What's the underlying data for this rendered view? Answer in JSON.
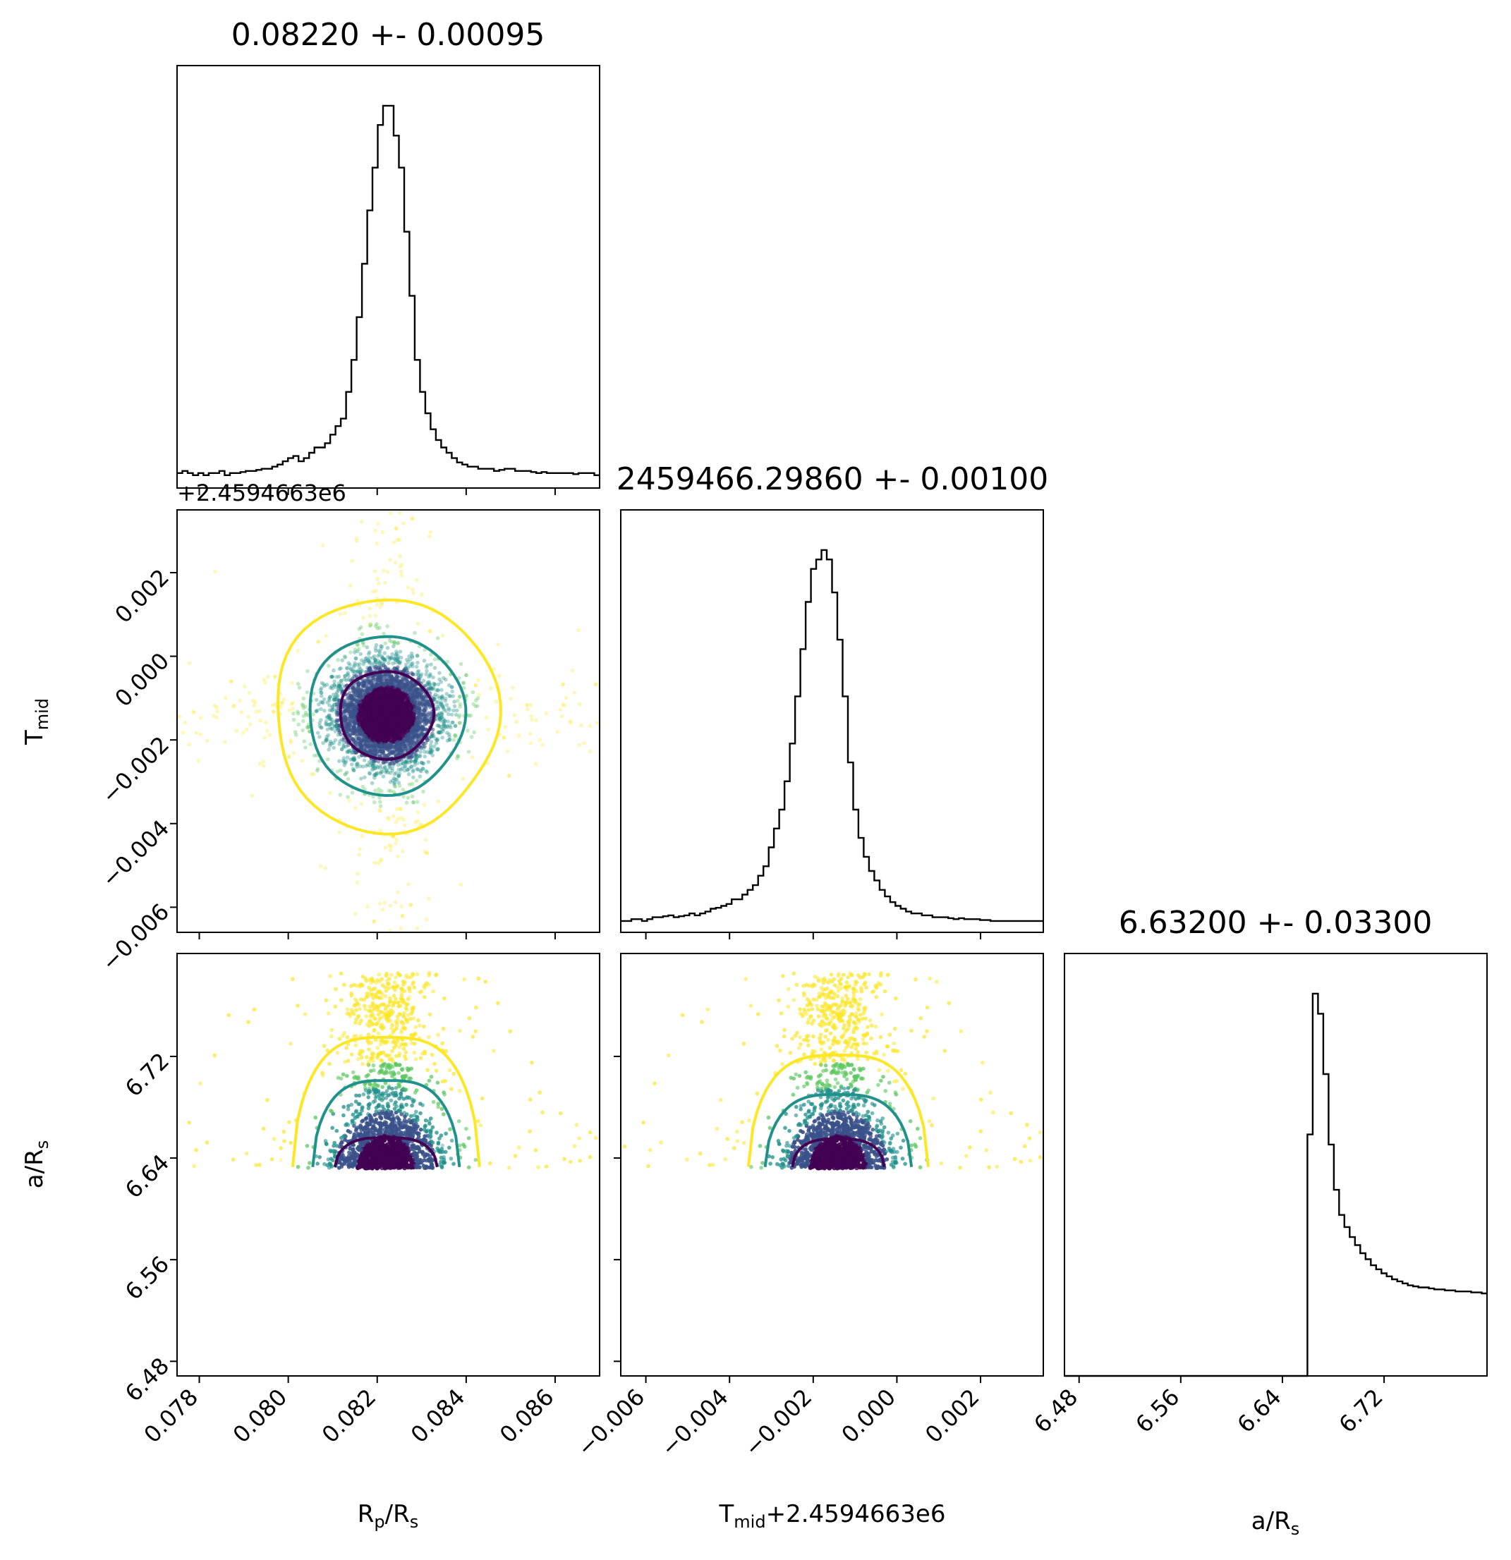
{
  "chart_data": {
    "type": "scatter",
    "panel_titles": {
      "rp": "0.08220 +- 0.00095",
      "tmid": "2459466.29860 +- 0.00100",
      "ars": "6.63200 +- 0.03300"
    },
    "offset_text": {
      "tmid_row": "+2.4594663e6",
      "tmid_xlabel_suffix": "+2.4594663e6"
    },
    "xlabels": {
      "rp": {
        "a": "R",
        "sub_a": "p",
        "b": "/R",
        "sub_b": "s"
      },
      "tmid": {
        "a": "T",
        "sub_a": "mid"
      },
      "ars": {
        "a": "a/R",
        "sub_a": "s"
      }
    },
    "ylabels": {
      "tmid": {
        "a": "T",
        "sub_a": "mid"
      },
      "ars": {
        "a": "a/R",
        "sub_a": "s"
      }
    },
    "axes": {
      "rp": {
        "range": [
          0.0775,
          0.087
        ],
        "ticks": [
          0.078,
          0.08,
          0.082,
          0.084,
          0.086
        ],
        "tick_labels": [
          "0.078",
          "0.080",
          "0.082",
          "0.084",
          "0.086"
        ]
      },
      "tmid": {
        "range": [
          -0.0066,
          0.0035
        ],
        "ticks": [
          -0.006,
          -0.004,
          -0.002,
          0.0,
          0.002
        ],
        "tick_labels": [
          "−0.006",
          "−0.004",
          "−0.002",
          "0.000",
          "0.002"
        ]
      },
      "ars": {
        "range": [
          6.4685,
          6.801
        ],
        "ticks": [
          6.48,
          6.56,
          6.64,
          6.72
        ],
        "tick_labels": [
          "6.48",
          "6.56",
          "6.64",
          "6.72"
        ]
      }
    },
    "posterior": {
      "rp": {
        "median": 0.0822,
        "sigma": 0.00095
      },
      "tmid": {
        "median": -0.0014,
        "sigma": 0.001
      },
      "ars": {
        "lower_bound": 6.632,
        "upper_bound": 6.786,
        "mode": 6.638
      }
    },
    "contour_colors": [
      "#440154",
      "#21918c",
      "#fde725"
    ],
    "point_colormap": [
      "#440154",
      "#3b528b",
      "#21918c",
      "#5ec962",
      "#fde725"
    ],
    "histograms": {
      "rp": {
        "edges": [
          0.0775,
          0.087
        ],
        "counts": [
          14,
          16,
          14,
          12,
          14,
          12,
          14,
          14,
          16,
          12,
          14,
          14,
          15,
          16,
          16,
          17,
          18,
          18,
          20,
          22,
          25,
          28,
          30,
          25,
          28,
          33,
          38,
          38,
          42,
          50,
          58,
          65,
          90,
          120,
          160,
          210,
          260,
          300,
          340,
          358,
          358,
          330,
          300,
          240,
          180,
          120,
          90,
          70,
          55,
          45,
          38,
          33,
          28,
          24,
          22,
          20,
          20,
          18,
          18,
          18,
          16,
          17,
          18,
          18,
          16,
          16,
          16,
          15,
          14,
          15,
          14,
          14,
          14,
          14,
          14,
          13,
          14,
          14,
          14,
          12
        ]
      },
      "tmid": {
        "edges": [
          -0.0066,
          0.0035
        ],
        "counts": [
          12,
          12,
          14,
          14,
          12,
          14,
          16,
          16,
          17,
          18,
          16,
          17,
          18,
          20,
          18,
          20,
          22,
          25,
          26,
          28,
          30,
          35,
          35,
          40,
          45,
          50,
          60,
          70,
          90,
          110,
          130,
          160,
          200,
          250,
          300,
          350,
          385,
          395,
          405,
          395,
          360,
          310,
          250,
          180,
          130,
          100,
          80,
          65,
          55,
          45,
          38,
          32,
          28,
          25,
          22,
          20,
          20,
          18,
          18,
          16,
          16,
          16,
          15,
          14,
          15,
          14,
          14,
          14,
          13,
          13,
          12,
          12,
          12,
          12,
          12,
          12,
          12,
          12,
          12,
          12
        ]
      },
      "ars": {
        "edges": [
          6.4685,
          6.801
        ],
        "counts": [
          0,
          0,
          0,
          0,
          0,
          0,
          0,
          0,
          0,
          0,
          0,
          0,
          0,
          0,
          0,
          0,
          0,
          0,
          0,
          0,
          0,
          0,
          0,
          0,
          0,
          0,
          0,
          0,
          0,
          0,
          0,
          0,
          0,
          0,
          0,
          0,
          0,
          0,
          0,
          0,
          0,
          0,
          0,
          0,
          0,
          0,
          240,
          380,
          360,
          300,
          230,
          185,
          160,
          148,
          138,
          130,
          122,
          116,
          110,
          106,
          102,
          99,
          96,
          94,
          92,
          90,
          89,
          88,
          88,
          87,
          86,
          86,
          85,
          85,
          84,
          84,
          84,
          83,
          83,
          82
        ]
      }
    }
  }
}
